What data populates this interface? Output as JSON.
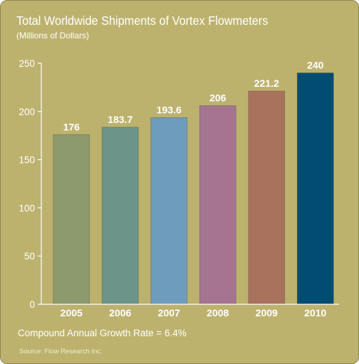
{
  "chart_data": {
    "type": "bar",
    "title": "Total Worldwide Shipments of Vortex Flowmeters",
    "subtitle": "(Millions of Dollars)",
    "categories": [
      "2005",
      "2006",
      "2007",
      "2008",
      "2009",
      "2010"
    ],
    "values": [
      176,
      183.7,
      193.6,
      206,
      221.2,
      240
    ],
    "value_labels": [
      "176",
      "183.7",
      "193.6",
      "206",
      "221.2",
      "240"
    ],
    "bar_colors": [
      "#8c9a6e",
      "#6c9488",
      "#6e9cbc",
      "#a47490",
      "#a8725c",
      "#004c72"
    ],
    "ylim": [
      0,
      250
    ],
    "yticks": [
      0,
      50,
      100,
      150,
      200,
      250
    ],
    "xlabel": "",
    "ylabel": "",
    "grid": false,
    "annotation": "Compound Annual Growth Rate = 6.4%",
    "source": "Source: Flow Research Inc."
  }
}
